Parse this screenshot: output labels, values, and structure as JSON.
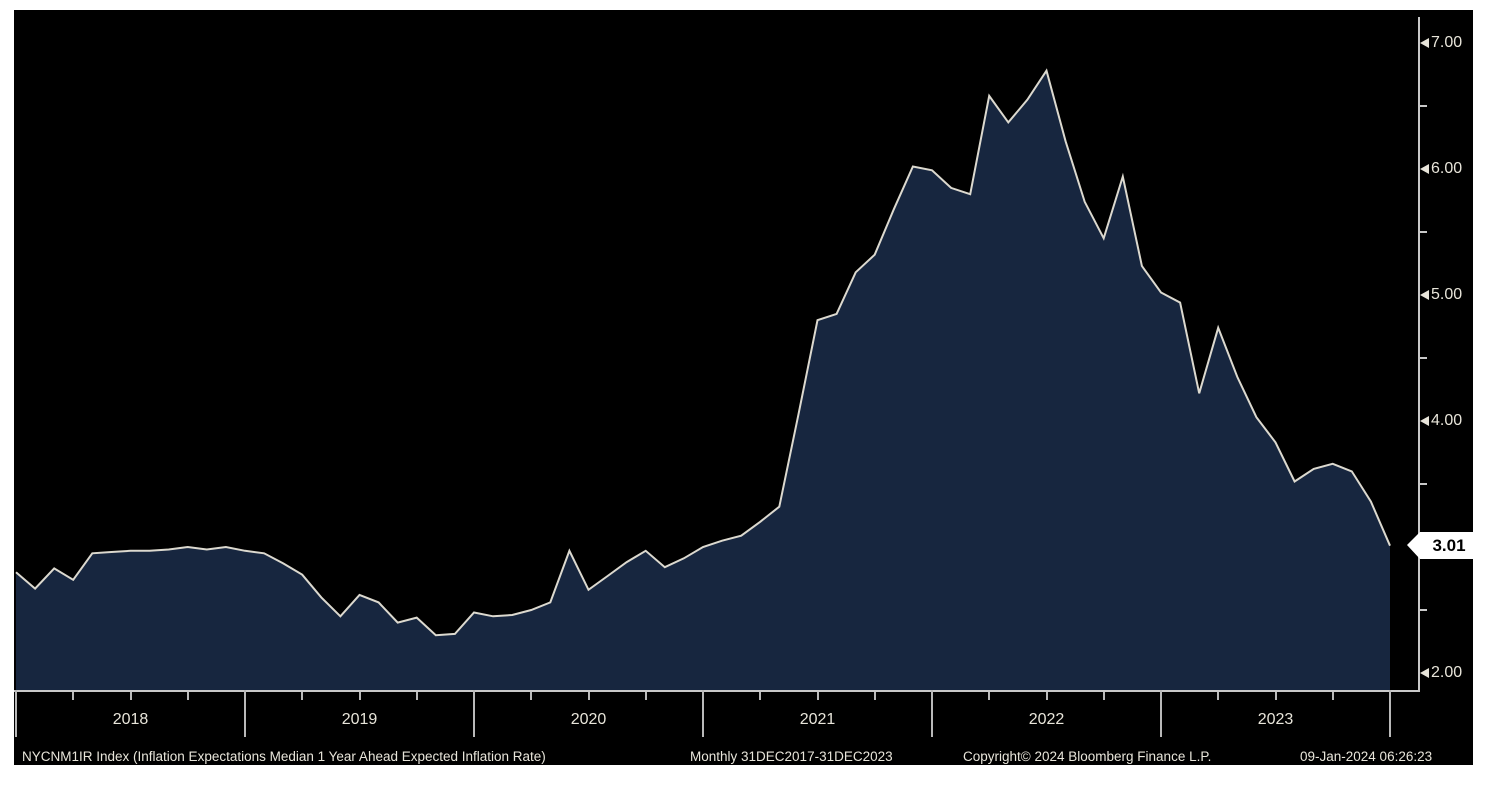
{
  "colors": {
    "background": "#000000",
    "area_fill": "#17263f",
    "line": "#dcd9cf",
    "axis": "#c9c9c9",
    "text": "#e8e5da",
    "badge_bg": "#ffffff",
    "badge_text": "#000000"
  },
  "chart_data": {
    "type": "area",
    "title": "NYCNM1IR Index (Inflation Expectations Median 1 Year Ahead Expected Inflation Rate)",
    "frequency": "Monthly",
    "period": "31DEC2017-31DEC2023",
    "x_start": "Dec-2017",
    "x_end": "Dec-2023",
    "ylim": [
      2.0,
      7.0
    ],
    "legend_position": "none",
    "grid": "off",
    "y_axis_side": "right",
    "values": [
      2.8,
      2.67,
      2.83,
      2.74,
      2.95,
      2.96,
      2.97,
      2.97,
      2.98,
      3.0,
      2.98,
      3.0,
      2.97,
      2.95,
      2.87,
      2.78,
      2.6,
      2.45,
      2.62,
      2.56,
      2.4,
      2.44,
      2.3,
      2.31,
      2.48,
      2.45,
      2.46,
      2.5,
      2.56,
      2.97,
      2.66,
      2.77,
      2.88,
      2.97,
      2.84,
      2.91,
      3.0,
      3.05,
      3.09,
      3.2,
      3.32,
      4.05,
      4.8,
      4.85,
      5.18,
      5.32,
      5.68,
      6.02,
      5.99,
      5.85,
      5.8,
      6.58,
      6.37,
      6.55,
      6.78,
      6.22,
      5.74,
      5.45,
      5.94,
      5.23,
      5.02,
      4.94,
      4.22,
      4.74,
      4.35,
      4.03,
      3.83,
      3.52,
      3.62,
      3.66,
      3.6,
      3.36,
      3.01
    ],
    "y_ticks_major": [
      {
        "value": 7.0,
        "label": "7.00"
      },
      {
        "value": 6.0,
        "label": "6.00"
      },
      {
        "value": 5.0,
        "label": "5.00"
      },
      {
        "value": 4.0,
        "label": "4.00"
      },
      {
        "value": 2.0,
        "label": "2.00"
      }
    ],
    "y_ticks_minor": [
      6.5,
      5.5,
      4.5,
      3.5,
      2.5
    ],
    "x_year_labels": [
      "2018",
      "2019",
      "2020",
      "2021",
      "2022",
      "2023"
    ],
    "last_value_badge": "3.01"
  },
  "footer": {
    "description": "NYCNM1IR Index (Inflation Expectations Median 1 Year Ahead Expected Inflation Rate)",
    "period": "Monthly 31DEC2017-31DEC2023",
    "copyright": "Copyright© 2024 Bloomberg Finance L.P.",
    "timestamp": "09-Jan-2024 06:26:23"
  }
}
